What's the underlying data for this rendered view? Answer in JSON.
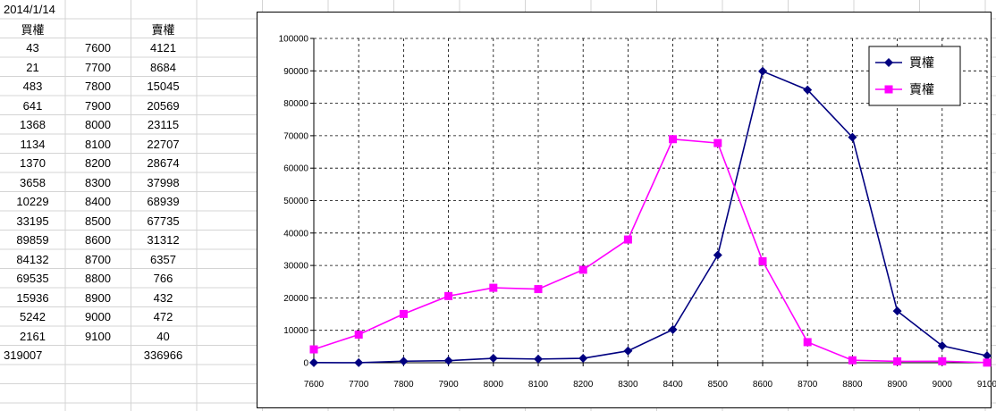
{
  "sheet": {
    "date": "2014/1/14",
    "header_left": "買權",
    "header_right": "賣權",
    "rows": [
      {
        "call": "43",
        "strike": "7600",
        "put": "4121"
      },
      {
        "call": "21",
        "strike": "7700",
        "put": "8684"
      },
      {
        "call": "483",
        "strike": "7800",
        "put": "15045"
      },
      {
        "call": "641",
        "strike": "7900",
        "put": "20569"
      },
      {
        "call": "1368",
        "strike": "8000",
        "put": "23115"
      },
      {
        "call": "1134",
        "strike": "8100",
        "put": "22707"
      },
      {
        "call": "1370",
        "strike": "8200",
        "put": "28674"
      },
      {
        "call": "3658",
        "strike": "8300",
        "put": "37998"
      },
      {
        "call": "10229",
        "strike": "8400",
        "put": "68939"
      },
      {
        "call": "33195",
        "strike": "8500",
        "put": "67735"
      },
      {
        "call": "89859",
        "strike": "8600",
        "put": "31312"
      },
      {
        "call": "84132",
        "strike": "8700",
        "put": "6357"
      },
      {
        "call": "69535",
        "strike": "8800",
        "put": "766"
      },
      {
        "call": "15936",
        "strike": "8900",
        "put": "432"
      },
      {
        "call": "5242",
        "strike": "9000",
        "put": "472"
      },
      {
        "call": "2161",
        "strike": "9100",
        "put": "40"
      }
    ],
    "total_call": "319007",
    "total_put": "336966"
  },
  "chart_data": {
    "type": "line",
    "categories": [
      "7600",
      "7700",
      "7800",
      "7900",
      "8000",
      "8100",
      "8200",
      "8300",
      "8400",
      "8500",
      "8600",
      "8700",
      "8800",
      "8900",
      "9000",
      "9100"
    ],
    "series": [
      {
        "name": "買權",
        "color": "#000080",
        "marker": "diamond",
        "values": [
          43,
          21,
          483,
          641,
          1368,
          1134,
          1370,
          3658,
          10229,
          33195,
          89859,
          84132,
          69535,
          15936,
          5242,
          2161
        ]
      },
      {
        "name": "賣權",
        "color": "#ff00ff",
        "marker": "square",
        "values": [
          4121,
          8684,
          15045,
          20569,
          23115,
          22707,
          28674,
          37998,
          68939,
          67735,
          31312,
          6357,
          766,
          432,
          472,
          40
        ]
      }
    ],
    "yticks": [
      "0",
      "10000",
      "20000",
      "30000",
      "40000",
      "50000",
      "60000",
      "70000",
      "80000",
      "90000",
      "100000"
    ],
    "ylim": [
      0,
      100000
    ],
    "grid": true,
    "legend_position": "top-right"
  }
}
